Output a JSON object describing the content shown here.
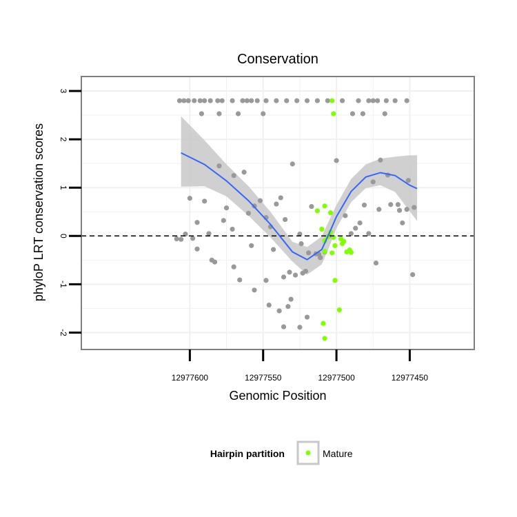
{
  "chart_data": {
    "type": "scatter",
    "title": "Conservation",
    "xlabel": "Genomic Position",
    "ylabel": "phyloP LRT conservation scores",
    "x_reversed": true,
    "xlim": [
      12977406,
      12977674
    ],
    "ylim": [
      -2.35,
      3.3
    ],
    "x_ticks": [
      12977600,
      12977550,
      12977500,
      12977450
    ],
    "x_tick_labels": [
      "12977600",
      "12977550",
      "12977500",
      "12977450"
    ],
    "y_ticks": [
      -2,
      -1,
      0,
      1,
      2,
      3
    ],
    "y_tick_labels": [
      "-2",
      "-1",
      "0",
      "1",
      "2",
      "3"
    ],
    "grid": true,
    "reference_line": {
      "y": 0,
      "style": "dashed",
      "color": "#000000"
    },
    "colors": {
      "other": "#999999",
      "mature": "#7fff00",
      "smooth_line": "#3366ff",
      "ribbon": "#c8c8c8",
      "panel_border": "#7f7f7f",
      "grid": "#f0f0f0"
    },
    "legend": {
      "position": "bottom",
      "title": "Hairpin partition",
      "entries": [
        "Mature"
      ]
    },
    "smooth": {
      "x": [
        12977606,
        12977590,
        12977575,
        12977560,
        12977545,
        12977530,
        12977520,
        12977510,
        12977505,
        12977500,
        12977490,
        12977480,
        12977470,
        12977460,
        12977450,
        12977445
      ],
      "y": [
        1.72,
        1.48,
        1.14,
        0.73,
        0.24,
        -0.33,
        -0.49,
        -0.28,
        0.05,
        0.4,
        0.92,
        1.22,
        1.31,
        1.25,
        1.05,
        0.98
      ],
      "upper": [
        2.48,
        1.98,
        1.48,
        1.03,
        0.5,
        -0.12,
        -0.23,
        -0.01,
        0.32,
        0.64,
        1.18,
        1.48,
        1.6,
        1.64,
        1.67,
        1.67
      ],
      "lower": [
        1.02,
        1.03,
        0.82,
        0.42,
        -0.03,
        -0.53,
        -0.8,
        -0.59,
        -0.23,
        0.16,
        0.7,
        0.99,
        1.05,
        0.91,
        0.51,
        0.31
      ]
    },
    "series": [
      {
        "name": "",
        "color": "#999999",
        "x": [
          12977607,
          12977604,
          12977601,
          12977597,
          12977593,
          12977590,
          12977586,
          12977581,
          12977578,
          12977571,
          12977564,
          12977561,
          12977558,
          12977554,
          12977548,
          12977541,
          12977534,
          12977527,
          12977520,
          12977513,
          12977506,
          12977496,
          12977485,
          12977478,
          12977475,
          12977472,
          12977466,
          12977460,
          12977452,
          12977592,
          12977580,
          12977567,
          12977550,
          12977489,
          12977482,
          12977467,
          12977603,
          12977595,
          12977587,
          12977577,
          12977571,
          12977563,
          12977556,
          12977548,
          12977541,
          12977535,
          12977530,
          12977524,
          12977517,
          12977511,
          12977505,
          12977500,
          12977494,
          12977487,
          12977481,
          12977475,
          12977470,
          12977463,
          12977457,
          12977451,
          12977447,
          12977600,
          12977590,
          12977580,
          12977570,
          12977560,
          12977552,
          12977545,
          12977538,
          12977532,
          12977525,
          12977514,
          12977508,
          12977490,
          12977484,
          12977478,
          12977471,
          12977465,
          12977458,
          12977452,
          12977598,
          12977585,
          12977575,
          12977558,
          12977543,
          12977528,
          12977519,
          12977512,
          12977606,
          12977595,
          12977583,
          12977566,
          12977548,
          12977536,
          12977525,
          12977473,
          12977448,
          12977556,
          12977539,
          12977531,
          12977523,
          12977521,
          12977455,
          12977609,
          12977570,
          12977546,
          12977536,
          12977533,
          12977520
        ],
        "y": [
          2.8,
          2.8,
          2.8,
          2.8,
          2.8,
          2.8,
          2.8,
          2.8,
          2.8,
          2.8,
          2.8,
          2.8,
          2.8,
          2.8,
          2.8,
          2.8,
          2.8,
          2.8,
          2.8,
          2.8,
          2.8,
          2.8,
          2.8,
          2.8,
          2.8,
          2.8,
          2.8,
          2.8,
          2.8,
          2.53,
          2.53,
          2.53,
          2.53,
          2.53,
          2.53,
          2.53,
          0.04,
          0.28,
          0.05,
          0.32,
          0.14,
          1.32,
          0.62,
          0.38,
          0.66,
          0.34,
          1.49,
          -0.16,
          0.61,
          -0.45,
          0.0,
          1.56,
          0.42,
          0.16,
          0.64,
          1.12,
          1.57,
          0.65,
          0.53,
          1.15,
          0.59,
          0.78,
          0.72,
          1.45,
          1.25,
          0.47,
          0.73,
          0.19,
          0.79,
          -0.75,
          0.04,
          -0.37,
          -0.33,
          0.05,
          0.27,
          0.05,
          0.55,
          1.26,
          0.65,
          0.55,
          -0.05,
          -0.5,
          0.58,
          -0.2,
          -0.28,
          -0.81,
          -0.35,
          -0.38,
          -0.07,
          -0.27,
          -0.54,
          -0.91,
          -0.92,
          -0.85,
          -1.89,
          -0.56,
          -0.8,
          -1.12,
          -1.55,
          -1.31,
          -0.77,
          -0.73,
          0.27,
          -0.06,
          -0.64,
          -1.43,
          -1.88,
          -1.46,
          -1.68
        ],
        "note_hidden": true
      },
      {
        "name": "Mature",
        "color": "#7fff00",
        "x": [
          12977503,
          12977502,
          12977504,
          12977513,
          12977508,
          12977510,
          12977506,
          12977497,
          12977496,
          12977502,
          12977508,
          12977501,
          12977504,
          12977503,
          12977508,
          12977495,
          12977493,
          12977490,
          12977491,
          12977501,
          12977498,
          12977509
        ],
        "y": [
          2.8,
          2.53,
          0.48,
          0.52,
          0.62,
          0.14,
          -0.02,
          -0.06,
          -0.16,
          -0.03,
          -0.1,
          -0.2,
          0.08,
          -0.35,
          -0.32,
          -0.11,
          -0.33,
          -0.34,
          -0.29,
          -0.92,
          -1.53,
          -1.81
        ],
        "note_hidden": true
      }
    ]
  },
  "extra_points": {
    "mature_low": {
      "x": 12977508,
      "y": -2.12
    }
  }
}
